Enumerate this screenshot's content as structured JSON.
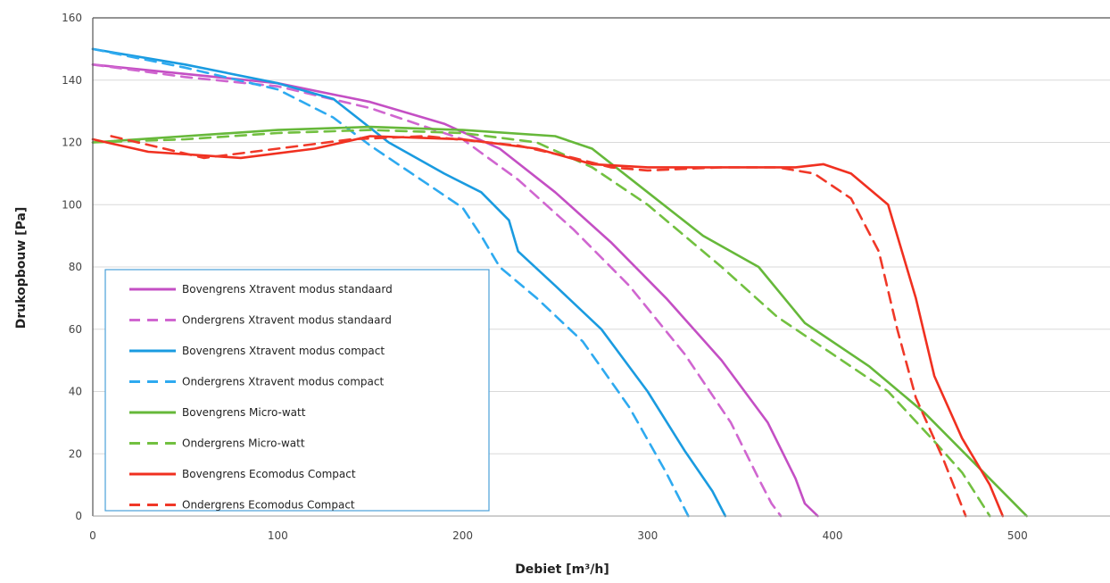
{
  "chart_data": {
    "type": "line",
    "title": "",
    "xlabel": "Debiet [m³/h]",
    "ylabel": "Drukopbouw [Pa]",
    "xlim": [
      0,
      550
    ],
    "ylim": [
      0,
      160
    ],
    "xticks": [
      0,
      100,
      200,
      300,
      400,
      500
    ],
    "yticks": [
      0,
      20,
      40,
      60,
      80,
      100,
      120,
      140,
      160
    ],
    "grid": "horizontal",
    "legend_position": "bottom-left",
    "series": [
      {
        "name": "Bovengrens Xtravent modus standaard",
        "color": "#c44fc4",
        "dash": "solid",
        "points": [
          [
            0,
            145
          ],
          [
            50,
            142
          ],
          [
            100,
            139
          ],
          [
            150,
            133
          ],
          [
            190,
            126
          ],
          [
            220,
            118
          ],
          [
            250,
            104
          ],
          [
            280,
            88
          ],
          [
            310,
            70
          ],
          [
            340,
            50
          ],
          [
            365,
            30
          ],
          [
            380,
            12
          ],
          [
            385,
            4
          ],
          [
            392,
            0
          ]
        ]
      },
      {
        "name": "Ondergrens Xtravent modus standaard",
        "color": "#d066d0",
        "dash": "dashed",
        "points": [
          [
            0,
            145
          ],
          [
            50,
            141
          ],
          [
            100,
            138
          ],
          [
            150,
            131
          ],
          [
            200,
            121
          ],
          [
            230,
            108
          ],
          [
            260,
            92
          ],
          [
            290,
            74
          ],
          [
            320,
            52
          ],
          [
            345,
            30
          ],
          [
            360,
            12
          ],
          [
            367,
            4
          ],
          [
            372,
            0
          ]
        ]
      },
      {
        "name": "Bovengrens Xtravent modus compact",
        "color": "#1a9be0",
        "dash": "solid",
        "points": [
          [
            0,
            150
          ],
          [
            50,
            145
          ],
          [
            100,
            139
          ],
          [
            130,
            134
          ],
          [
            160,
            120
          ],
          [
            190,
            110
          ],
          [
            210,
            104
          ],
          [
            225,
            95
          ],
          [
            230,
            85
          ],
          [
            250,
            74
          ],
          [
            275,
            60
          ],
          [
            300,
            40
          ],
          [
            320,
            21
          ],
          [
            335,
            8
          ],
          [
            342,
            0
          ]
        ]
      },
      {
        "name": "Ondergrens Xtravent modus compact",
        "color": "#2eaaf0",
        "dash": "dashed",
        "points": [
          [
            0,
            150
          ],
          [
            50,
            144
          ],
          [
            100,
            137
          ],
          [
            130,
            128
          ],
          [
            150,
            119
          ],
          [
            180,
            107
          ],
          [
            200,
            99
          ],
          [
            210,
            90
          ],
          [
            220,
            80
          ],
          [
            240,
            70
          ],
          [
            265,
            56
          ],
          [
            290,
            35
          ],
          [
            310,
            14
          ],
          [
            322,
            0
          ]
        ]
      },
      {
        "name": "Bovengrens Micro-watt",
        "color": "#66b83a",
        "dash": "solid",
        "points": [
          [
            0,
            120
          ],
          [
            50,
            122
          ],
          [
            100,
            124
          ],
          [
            150,
            125
          ],
          [
            200,
            124
          ],
          [
            250,
            122
          ],
          [
            270,
            118
          ],
          [
            300,
            104
          ],
          [
            330,
            90
          ],
          [
            360,
            80
          ],
          [
            385,
            62
          ],
          [
            420,
            48
          ],
          [
            450,
            33
          ],
          [
            480,
            15
          ],
          [
            505,
            0
          ]
        ]
      },
      {
        "name": "Ondergrens Micro-watt",
        "color": "#72c040",
        "dash": "dashed",
        "points": [
          [
            0,
            120
          ],
          [
            50,
            121
          ],
          [
            100,
            123
          ],
          [
            150,
            124
          ],
          [
            200,
            123
          ],
          [
            240,
            120
          ],
          [
            270,
            112
          ],
          [
            300,
            100
          ],
          [
            340,
            80
          ],
          [
            370,
            64
          ],
          [
            400,
            52
          ],
          [
            430,
            40
          ],
          [
            455,
            24
          ],
          [
            470,
            14
          ],
          [
            485,
            0
          ]
        ]
      },
      {
        "name": "Bovengrens Ecomodus Compact",
        "color": "#f03020",
        "dash": "solid",
        "points": [
          [
            0,
            121
          ],
          [
            30,
            117
          ],
          [
            80,
            115
          ],
          [
            120,
            118
          ],
          [
            150,
            122
          ],
          [
            200,
            121
          ],
          [
            240,
            118
          ],
          [
            270,
            113
          ],
          [
            300,
            112
          ],
          [
            350,
            112
          ],
          [
            380,
            112
          ],
          [
            395,
            113
          ],
          [
            410,
            110
          ],
          [
            430,
            100
          ],
          [
            445,
            70
          ],
          [
            455,
            45
          ],
          [
            470,
            25
          ],
          [
            485,
            10
          ],
          [
            492,
            0
          ]
        ]
      },
      {
        "name": "Ondergrens Ecomodus Compact",
        "color": "#f03828",
        "dash": "dashed",
        "points": [
          [
            10,
            122
          ],
          [
            60,
            115
          ],
          [
            100,
            118
          ],
          [
            140,
            121
          ],
          [
            180,
            122
          ],
          [
            230,
            119
          ],
          [
            260,
            115
          ],
          [
            280,
            112
          ],
          [
            300,
            111
          ],
          [
            340,
            112
          ],
          [
            370,
            112
          ],
          [
            390,
            110
          ],
          [
            410,
            102
          ],
          [
            425,
            85
          ],
          [
            435,
            60
          ],
          [
            445,
            38
          ],
          [
            460,
            18
          ],
          [
            472,
            0
          ]
        ]
      }
    ]
  }
}
